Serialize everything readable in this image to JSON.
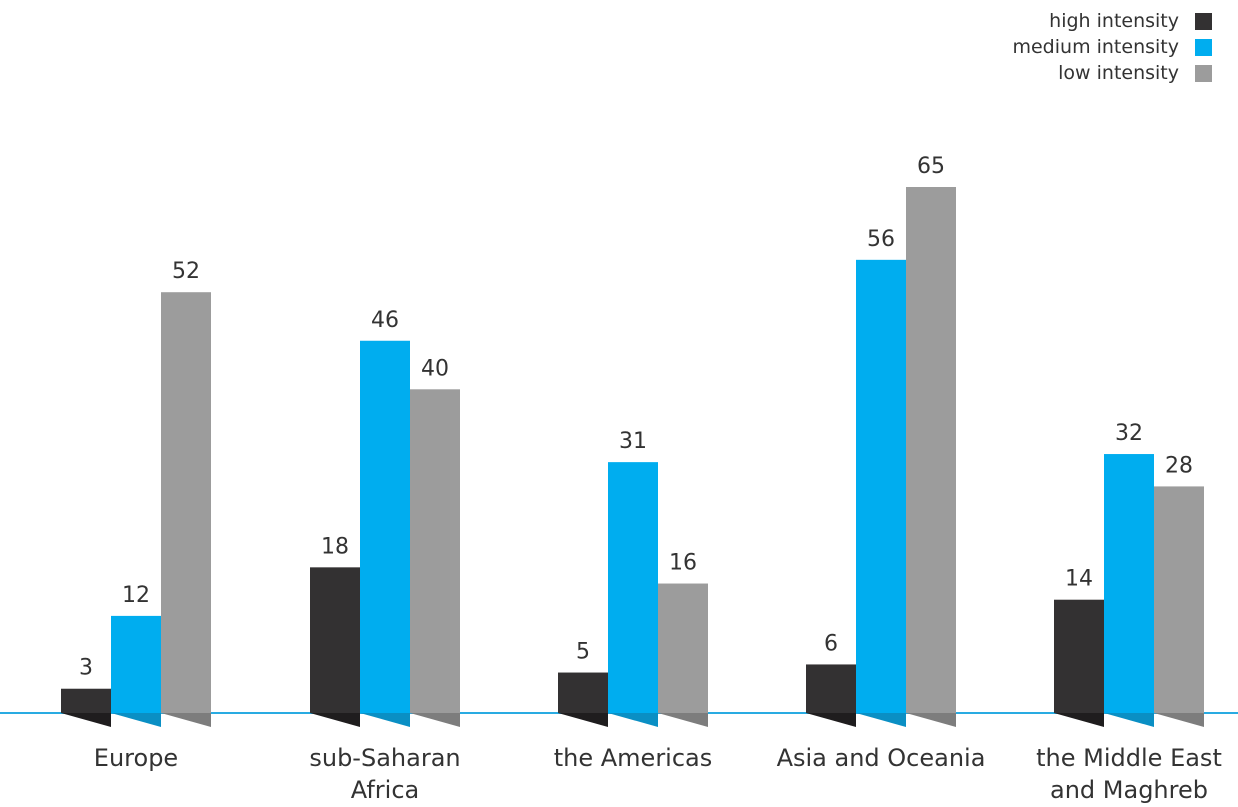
{
  "chart_data": {
    "type": "bar",
    "categories": [
      "Europe",
      "sub-Saharan Africa",
      "the Americas",
      "Asia and Oceania",
      "the Middle East and Maghreb"
    ],
    "category_lines": [
      [
        "Europe"
      ],
      [
        "sub-Saharan",
        "Africa"
      ],
      [
        "the Americas"
      ],
      [
        "Asia and Oceania"
      ],
      [
        "the Middle East",
        "and Maghreb"
      ]
    ],
    "series": [
      {
        "name": "high intensity",
        "color": "#333132",
        "shade": "#1f1d1e",
        "values": [
          3,
          18,
          5,
          6,
          14
        ]
      },
      {
        "name": "medium intensity",
        "color": "#00adef",
        "shade": "#0a8fc4",
        "values": [
          12,
          46,
          31,
          56,
          32
        ]
      },
      {
        "name": "low intensity",
        "color": "#9c9c9c",
        "shade": "#7d7d7d",
        "values": [
          52,
          40,
          16,
          65,
          28
        ]
      }
    ],
    "ylim": [
      0,
      65
    ],
    "grid": false,
    "legend_position": "top-right",
    "baseline_color": "#29abe2"
  }
}
